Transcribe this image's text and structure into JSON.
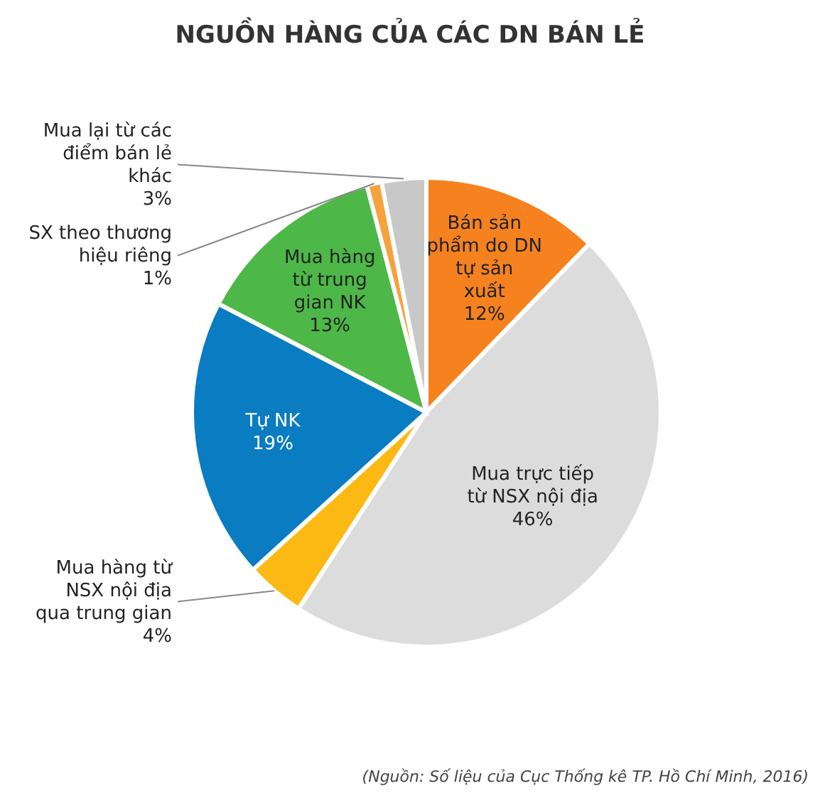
{
  "chart_data": {
    "type": "pie",
    "title": "NGUỒN HÀNG CỦA CÁC DN BÁN LẺ",
    "categories": [
      "Bán sản phẩm do DN tự sản xuất",
      "Mua trực tiếp từ NSX nội địa",
      "Mua hàng từ NSX nội địa qua trung gian",
      "Tự NK",
      "Mua hàng từ trung gian NK",
      "SX theo thương hiệu riêng",
      "Mua lại từ các điểm bán lẻ khác"
    ],
    "values": [
      12,
      46,
      4,
      19,
      13,
      1,
      3
    ],
    "value_labels": [
      "12%",
      "46%",
      "4%",
      "19%",
      "13%",
      "1%",
      "3%"
    ],
    "colors": [
      "#f5821f",
      "#dcdcdd",
      "#fdb913",
      "#0a7cc1",
      "#4db848",
      "#f7a13b",
      "#c8c8c8"
    ],
    "annotations": [
      "(Nguồn: Số liệu của Cục Thống kê TP. Hồ Chí Minh, 2016)"
    ]
  }
}
